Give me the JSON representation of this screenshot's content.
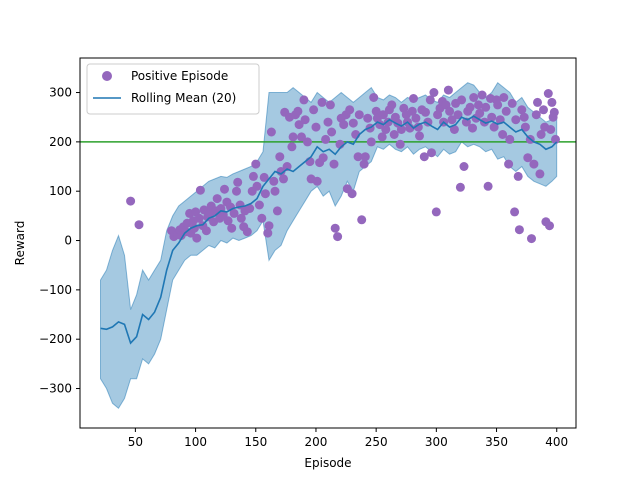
{
  "chart_data": {
    "type": "scatter",
    "xlabel": "Episode",
    "ylabel": "Reward",
    "xlim": [
      4,
      416
    ],
    "ylim": [
      -380,
      370
    ],
    "xticks": [
      50,
      100,
      150,
      200,
      250,
      300,
      350,
      400
    ],
    "yticks": [
      -300,
      -200,
      -100,
      0,
      100,
      200,
      300
    ],
    "grid": false,
    "legend": {
      "placement": "top-left",
      "entries": [
        "Positive Episode",
        "Rolling Mean (20)"
      ]
    },
    "threshold": {
      "y": 200,
      "color": "#2ca02c"
    },
    "colors": {
      "points": "#9467bd",
      "mean": "#1f77b4",
      "band": "#1f77b4"
    },
    "series": [
      {
        "name": "Positive Episode",
        "type": "scatter",
        "points": [
          [
            46,
            80
          ],
          [
            53,
            32
          ],
          [
            80,
            20
          ],
          [
            82,
            8
          ],
          [
            85,
            12
          ],
          [
            87,
            22
          ],
          [
            88,
            10
          ],
          [
            90,
            28
          ],
          [
            92,
            18
          ],
          [
            93,
            35
          ],
          [
            95,
            55
          ],
          [
            96,
            15
          ],
          [
            98,
            40
          ],
          [
            99,
            25
          ],
          [
            100,
            58
          ],
          [
            101,
            5
          ],
          [
            103,
            45
          ],
          [
            104,
            102
          ],
          [
            106,
            30
          ],
          [
            107,
            62
          ],
          [
            109,
            20
          ],
          [
            110,
            48
          ],
          [
            112,
            55
          ],
          [
            113,
            70
          ],
          [
            115,
            38
          ],
          [
            117,
            60
          ],
          [
            118,
            85
          ],
          [
            120,
            45
          ],
          [
            121,
            65
          ],
          [
            123,
            52
          ],
          [
            124,
            104
          ],
          [
            126,
            78
          ],
          [
            127,
            40
          ],
          [
            129,
            68
          ],
          [
            130,
            25
          ],
          [
            132,
            55
          ],
          [
            134,
            100
          ],
          [
            135,
            118
          ],
          [
            137,
            72
          ],
          [
            138,
            45
          ],
          [
            140,
            28
          ],
          [
            141,
            60
          ],
          [
            143,
            18
          ],
          [
            145,
            65
          ],
          [
            147,
            100
          ],
          [
            148,
            130
          ],
          [
            150,
            155
          ],
          [
            151,
            110
          ],
          [
            153,
            72
          ],
          [
            155,
            45
          ],
          [
            157,
            128
          ],
          [
            158,
            95
          ],
          [
            160,
            15
          ],
          [
            161,
            30
          ],
          [
            163,
            220
          ],
          [
            165,
            120
          ],
          [
            166,
            100
          ],
          [
            168,
            60
          ],
          [
            170,
            170
          ],
          [
            171,
            140
          ],
          [
            173,
            125
          ],
          [
            174,
            260
          ],
          [
            176,
            150
          ],
          [
            178,
            250
          ],
          [
            180,
            190
          ],
          [
            181,
            210
          ],
          [
            183,
            255
          ],
          [
            185,
            262
          ],
          [
            186,
            235
          ],
          [
            188,
            210
          ],
          [
            190,
            285
          ],
          [
            191,
            245
          ],
          [
            193,
            200
          ],
          [
            195,
            160
          ],
          [
            196,
            125
          ],
          [
            198,
            265
          ],
          [
            200,
            230
          ],
          [
            201,
            120
          ],
          [
            203,
            158
          ],
          [
            205,
            280
          ],
          [
            206,
            168
          ],
          [
            208,
            205
          ],
          [
            210,
            240
          ],
          [
            212,
            275
          ],
          [
            213,
            220
          ],
          [
            215,
            155
          ],
          [
            216,
            25
          ],
          [
            218,
            8
          ],
          [
            220,
            195
          ],
          [
            221,
            248
          ],
          [
            223,
            235
          ],
          [
            225,
            255
          ],
          [
            226,
            105
          ],
          [
            228,
            265
          ],
          [
            230,
            95
          ],
          [
            231,
            238
          ],
          [
            233,
            215
          ],
          [
            235,
            170
          ],
          [
            236,
            255
          ],
          [
            238,
            42
          ],
          [
            240,
            155
          ],
          [
            241,
            170
          ],
          [
            243,
            248
          ],
          [
            245,
            228
          ],
          [
            246,
            200
          ],
          [
            248,
            290
          ],
          [
            250,
            262
          ],
          [
            251,
            248
          ],
          [
            253,
            235
          ],
          [
            255,
            210
          ],
          [
            256,
            255
          ],
          [
            258,
            225
          ],
          [
            260,
            240
          ],
          [
            261,
            265
          ],
          [
            263,
            275
          ],
          [
            265,
            215
          ],
          [
            266,
            250
          ],
          [
            268,
            238
          ],
          [
            270,
            195
          ],
          [
            271,
            225
          ],
          [
            273,
            268
          ],
          [
            275,
            255
          ],
          [
            276,
            240
          ],
          [
            278,
            228
          ],
          [
            280,
            262
          ],
          [
            281,
            288
          ],
          [
            283,
            248
          ],
          [
            285,
            230
          ],
          [
            286,
            212
          ],
          [
            288,
            265
          ],
          [
            290,
            170
          ],
          [
            291,
            260
          ],
          [
            293,
            240
          ],
          [
            295,
            285
          ],
          [
            296,
            178
          ],
          [
            298,
            300
          ],
          [
            300,
            58
          ],
          [
            301,
            255
          ],
          [
            303,
            268
          ],
          [
            305,
            282
          ],
          [
            306,
            240
          ],
          [
            308,
            275
          ],
          [
            310,
            305
          ],
          [
            311,
            262
          ],
          [
            313,
            245
          ],
          [
            315,
            225
          ],
          [
            316,
            278
          ],
          [
            318,
            255
          ],
          [
            320,
            108
          ],
          [
            321,
            285
          ],
          [
            323,
            150
          ],
          [
            325,
            240
          ],
          [
            326,
            262
          ],
          [
            328,
            270
          ],
          [
            330,
            228
          ],
          [
            331,
            290
          ],
          [
            333,
            248
          ],
          [
            335,
            275
          ],
          [
            336,
            258
          ],
          [
            338,
            295
          ],
          [
            340,
            240
          ],
          [
            341,
            270
          ],
          [
            343,
            110
          ],
          [
            345,
            288
          ],
          [
            346,
            250
          ],
          [
            348,
            230
          ],
          [
            350,
            285
          ],
          [
            351,
            275
          ],
          [
            353,
            245
          ],
          [
            355,
            215
          ],
          [
            356,
            290
          ],
          [
            358,
            262
          ],
          [
            360,
            155
          ],
          [
            361,
            205
          ],
          [
            363,
            278
          ],
          [
            365,
            58
          ],
          [
            366,
            245
          ],
          [
            368,
            130
          ],
          [
            369,
            22
          ],
          [
            371,
            265
          ],
          [
            373,
            250
          ],
          [
            374,
            230
          ],
          [
            376,
            168
          ],
          [
            378,
            205
          ],
          [
            379,
            4
          ],
          [
            381,
            155
          ],
          [
            383,
            255
          ],
          [
            384,
            280
          ],
          [
            386,
            135
          ],
          [
            387,
            215
          ],
          [
            389,
            265
          ],
          [
            390,
            230
          ],
          [
            391,
            38
          ],
          [
            393,
            298
          ],
          [
            394,
            30
          ],
          [
            395,
            225
          ],
          [
            396,
            280
          ],
          [
            397,
            250
          ],
          [
            398,
            260
          ],
          [
            399,
            205
          ]
        ]
      },
      {
        "name": "Rolling Mean (20)",
        "type": "line",
        "x": [
          21,
          26,
          31,
          36,
          41,
          46,
          51,
          56,
          61,
          66,
          71,
          76,
          81,
          86,
          91,
          96,
          101,
          106,
          111,
          116,
          121,
          126,
          131,
          136,
          141,
          146,
          151,
          156,
          161,
          166,
          171,
          176,
          181,
          186,
          191,
          196,
          201,
          206,
          211,
          216,
          221,
          226,
          231,
          236,
          241,
          246,
          251,
          256,
          261,
          266,
          271,
          276,
          281,
          286,
          291,
          296,
          301,
          306,
          311,
          316,
          321,
          326,
          331,
          336,
          341,
          346,
          351,
          356,
          361,
          366,
          371,
          376,
          381,
          386,
          391,
          396,
          400
        ],
        "y": [
          -178,
          -180,
          -175,
          -165,
          -170,
          -208,
          -195,
          -150,
          -160,
          -145,
          -115,
          -60,
          -20,
          -5,
          15,
          25,
          30,
          32,
          45,
          50,
          60,
          58,
          65,
          68,
          70,
          75,
          85,
          110,
          125,
          140,
          135,
          145,
          140,
          150,
          160,
          170,
          190,
          180,
          185,
          175,
          190,
          200,
          195,
          215,
          225,
          230,
          240,
          235,
          245,
          238,
          232,
          240,
          228,
          236,
          240,
          232,
          225,
          240,
          230,
          235,
          250,
          245,
          252,
          245,
          238,
          242,
          236,
          240,
          230,
          220,
          225,
          210,
          200,
          195,
          185,
          190,
          200
        ],
        "upper": [
          -80,
          -60,
          -20,
          10,
          -30,
          -140,
          -110,
          -60,
          -80,
          -60,
          -40,
          20,
          50,
          70,
          80,
          90,
          100,
          110,
          120,
          125,
          130,
          128,
          135,
          140,
          145,
          150,
          160,
          180,
          300,
          300,
          300,
          300,
          310,
          300,
          290,
          280,
          300,
          290,
          280,
          290,
          300,
          290,
          280,
          290,
          300,
          310,
          290,
          285,
          295,
          290,
          280,
          290,
          285,
          290,
          295,
          285,
          280,
          295,
          290,
          300,
          310,
          320,
          315,
          300,
          290,
          300,
          320,
          310,
          300,
          280,
          290,
          270,
          260,
          250,
          240,
          245,
          250
        ],
        "lower": [
          -280,
          -300,
          -330,
          -340,
          -320,
          -280,
          -280,
          -240,
          -250,
          -230,
          -200,
          -140,
          -80,
          -60,
          -40,
          -30,
          -30,
          -20,
          -10,
          -15,
          0,
          -5,
          5,
          0,
          5,
          10,
          20,
          40,
          -40,
          -20,
          -10,
          20,
          40,
          60,
          80,
          100,
          110,
          90,
          100,
          70,
          90,
          120,
          100,
          140,
          150,
          160,
          190,
          185,
          195,
          185,
          180,
          190,
          175,
          185,
          190,
          180,
          170,
          185,
          175,
          180,
          200,
          190,
          195,
          190,
          180,
          185,
          165,
          170,
          150,
          140,
          150,
          130,
          120,
          115,
          110,
          120,
          130
        ]
      }
    ]
  }
}
